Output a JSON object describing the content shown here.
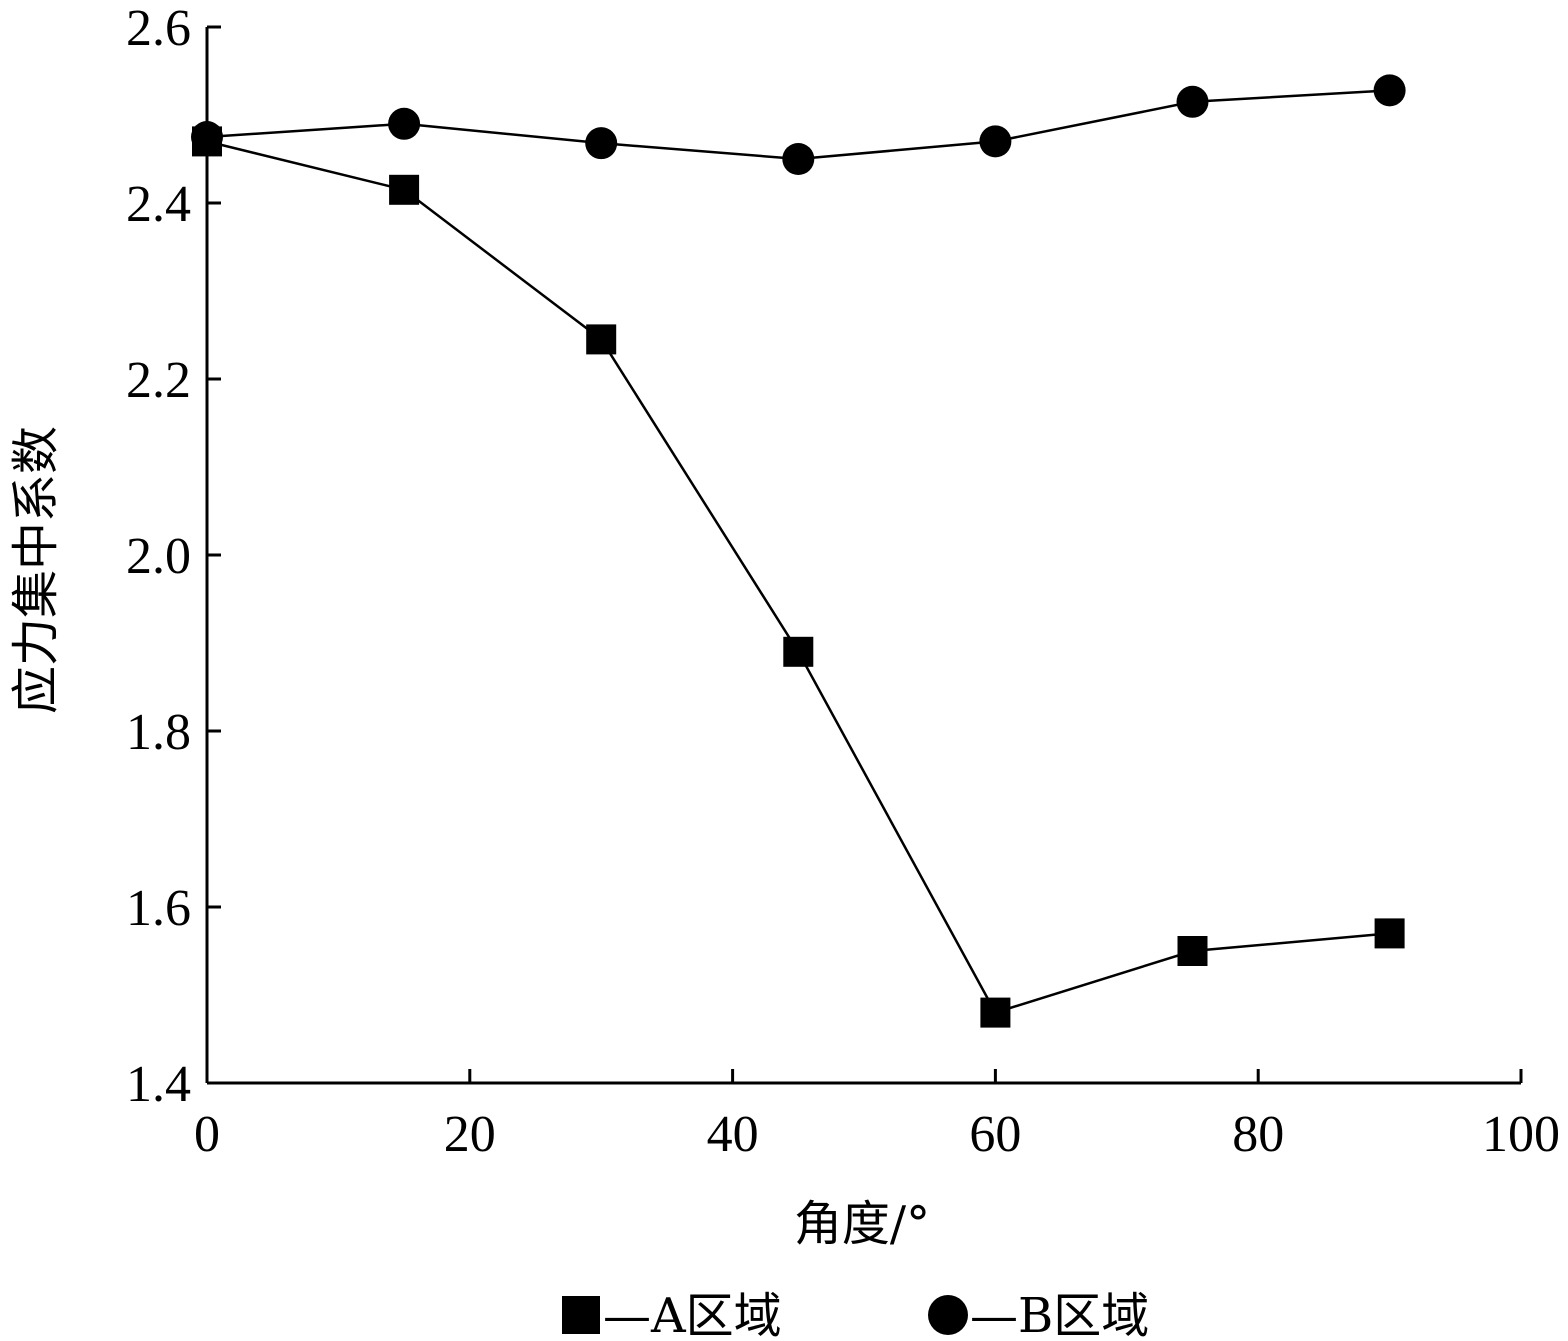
{
  "chart_data": {
    "type": "line",
    "xlabel": "角度/°",
    "ylabel": "应力集中系数",
    "xlim": [
      0,
      100
    ],
    "ylim": [
      1.4,
      2.6
    ],
    "xticks": [
      "0",
      "20",
      "40",
      "60",
      "80",
      "100"
    ],
    "yticks": [
      "1.4",
      "1.6",
      "1.8",
      "2.0",
      "2.2",
      "2.4",
      "2.6"
    ],
    "grid": false,
    "legend_position": "bottom",
    "x": [
      0,
      15,
      30,
      45,
      60,
      75,
      90
    ],
    "series": [
      {
        "name": "—A区域",
        "marker": "square",
        "values": [
          2.47,
          2.415,
          2.245,
          1.89,
          1.48,
          1.55,
          1.57
        ]
      },
      {
        "name": "—B区域",
        "marker": "circle",
        "values": [
          2.475,
          2.49,
          2.468,
          2.45,
          2.47,
          2.515,
          2.528
        ]
      }
    ]
  }
}
